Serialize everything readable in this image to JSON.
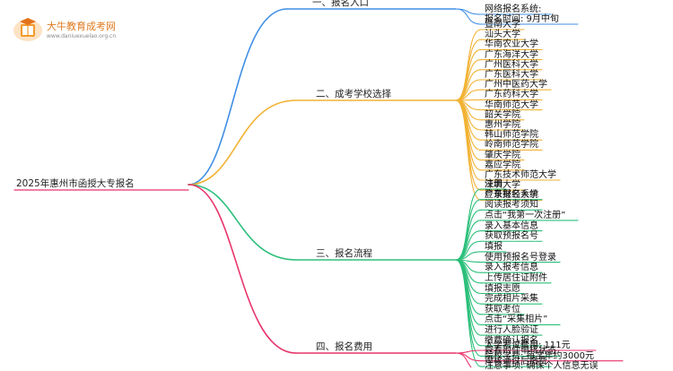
{
  "logo": {
    "title": "大牛教育成考网",
    "url": "www.daniuexuelao.org.cn",
    "icon": "graduation-book-icon"
  },
  "mindmap": {
    "root": "2025年惠州市函授大专报名",
    "branches": [
      {
        "label": "一、报名入口",
        "color": "#3f8fe6",
        "items": [
          "网络报名系统:",
          "报名时间: 9月中旬"
        ]
      },
      {
        "label": "二、成考学校选择",
        "color": "#f2b233",
        "items": [
          "暨南大学",
          "汕头大学",
          "华南农业大学",
          "广东海洋大学",
          "广州医科大学",
          "广东医科大学",
          "广州中医药大学",
          "广东药科大学",
          "华南师范大学",
          "韶关学院",
          "惠州学院",
          "韩山师范学院",
          "岭南师范学院",
          "肇庆学院",
          "嘉应学院",
          "广东技术师范大学",
          "深圳大学",
          "广东财经大学"
        ]
      },
      {
        "label": "三、报名流程",
        "color": "#2bbf7a",
        "items": [
          "注册",
          "登录报名系统",
          "阅读报考须知",
          "点击“我第一次注册”",
          "录入基本信息",
          "获取预报名号",
          "填报",
          "使用预报名号登录",
          "录入报考信息",
          "上传居住证附件",
          "填报志愿",
          "完成相片采集",
          "获取考位",
          "点击“采集相片”",
          "进行人脸验证",
          "缴费确认报名",
          "查看附件审核状态",
          "审核通过后缴费"
        ]
      },
      {
        "label": "四、报名费用",
        "color": "#e8336b",
        "items": [
          "入学考试费用: 111元",
          "院校学费: 每学年约3000元",
          "注意事项: 确保个人信息无误"
        ]
      }
    ]
  }
}
